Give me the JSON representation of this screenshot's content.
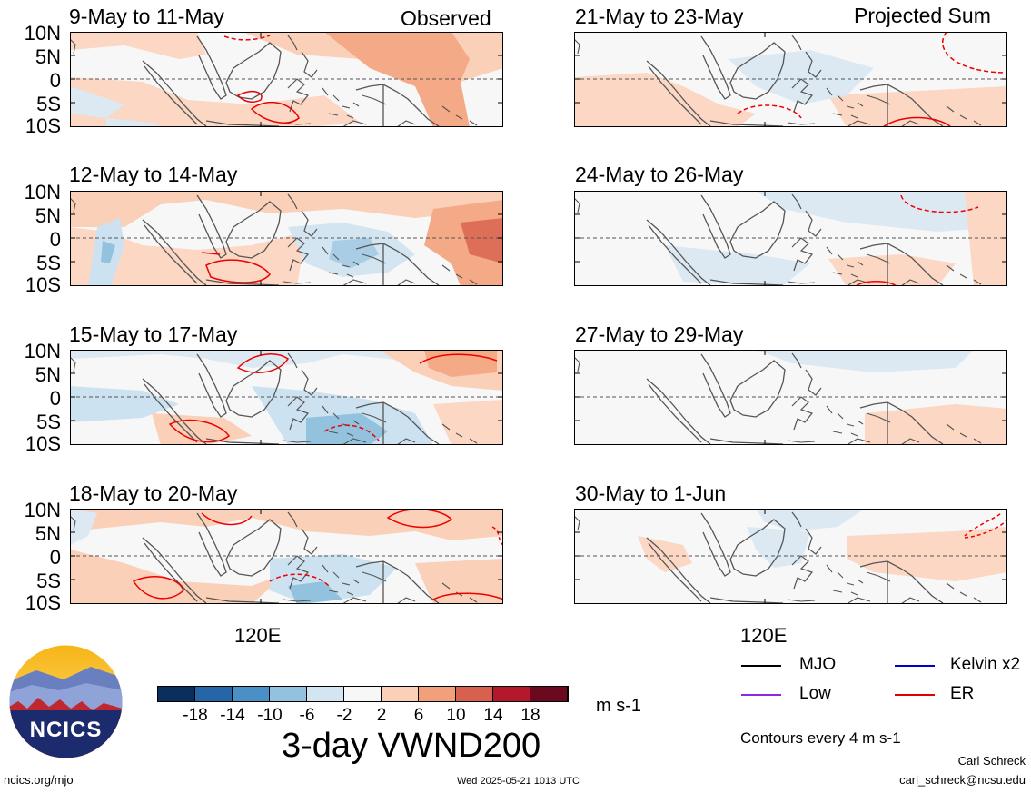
{
  "columns": {
    "left": "Observed",
    "right": "Projected Sum"
  },
  "panels_left": [
    {
      "title": "9-May to 11-May"
    },
    {
      "title": "12-May to 14-May"
    },
    {
      "title": "15-May to 17-May"
    },
    {
      "title": "18-May to 20-May"
    }
  ],
  "panels_right": [
    {
      "title": "21-May to 23-May"
    },
    {
      "title": "24-May to 26-May"
    },
    {
      "title": "27-May to 29-May"
    },
    {
      "title": "30-May to 1-Jun"
    }
  ],
  "lat_labels": [
    "10N",
    "5N",
    "0",
    "5S",
    "10S"
  ],
  "lon_label": "120E",
  "colorbar": {
    "labels": [
      "-18",
      "-14",
      "-10",
      "-6",
      "-2",
      "2",
      "6",
      "10",
      "14",
      "18"
    ],
    "colors": [
      "#0b2f5c",
      "#2566a9",
      "#4a8fc6",
      "#93c2de",
      "#d2e5f1",
      "#f7f7f7",
      "#fbd0b8",
      "#f2a07c",
      "#d8604e",
      "#b3192b",
      "#6b0a1f"
    ],
    "units": "m s-1"
  },
  "main_title": "3-day VWND200",
  "logo_text": "NCICS",
  "legend": {
    "items": [
      {
        "label": "MJO",
        "color": "#000000"
      },
      {
        "label": "Kelvin x2",
        "color": "#0000cc"
      },
      {
        "label": "Low",
        "color": "#8a2be2"
      },
      {
        "label": "ER",
        "color": "#e00000"
      }
    ],
    "contour_note": "Contours every 4 m s-1"
  },
  "footer": {
    "url": "ncics.org/mjo",
    "timestamp": "Wed 2025-05-21 1013 UTC",
    "author": "Carl Schreck",
    "email": "carl_schreck@ncsu.edu"
  }
}
